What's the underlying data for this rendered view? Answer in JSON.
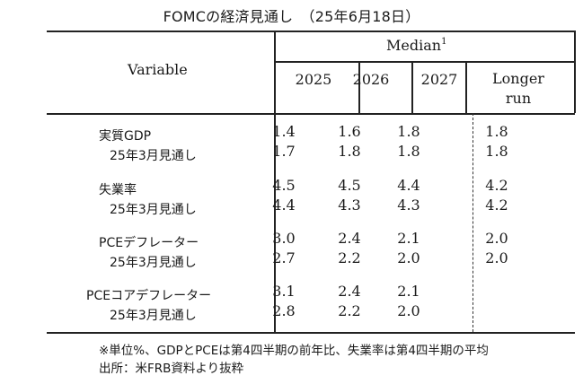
{
  "title": "FOMCの経済見通し　（25年6月18日）",
  "header": {
    "variable": "Variable",
    "median": "Median",
    "median_sup": "1",
    "years": [
      "2025",
      "2026",
      "2027"
    ],
    "longer_line1": "Longer",
    "longer_line2": "run"
  },
  "rows": [
    {
      "label": "実質GDP",
      "values": [
        "1.4",
        "1.6",
        "1.8",
        "1.8"
      ]
    },
    {
      "label": "25年3月見通し",
      "values": [
        "1.7",
        "1.8",
        "1.8",
        "1.8"
      ]
    },
    {
      "label": "失業率",
      "values": [
        "4.5",
        "4.5",
        "4.4",
        "4.2"
      ]
    },
    {
      "label": "25年3月見通し",
      "values": [
        "4.4",
        "4.3",
        "4.3",
        "4.2"
      ]
    },
    {
      "label": "PCEデフレーター",
      "values": [
        "3.0",
        "2.4",
        "2.1",
        "2.0"
      ]
    },
    {
      "label": "25年3月見通し",
      "values": [
        "2.7",
        "2.2",
        "2.0",
        "2.0"
      ]
    },
    {
      "label": "PCEコアデフレーター",
      "values": [
        "3.1",
        "2.4",
        "2.1",
        ""
      ]
    },
    {
      "label": "25年3月見通し",
      "values": [
        "2.8",
        "2.2",
        "2.0",
        ""
      ]
    }
  ],
  "notes": {
    "line1": "※単位%、GDPとPCEは第4四半期の前年比、失業率は第4四半期の平均",
    "line2": "出所：米FRB資料より抜粋"
  }
}
